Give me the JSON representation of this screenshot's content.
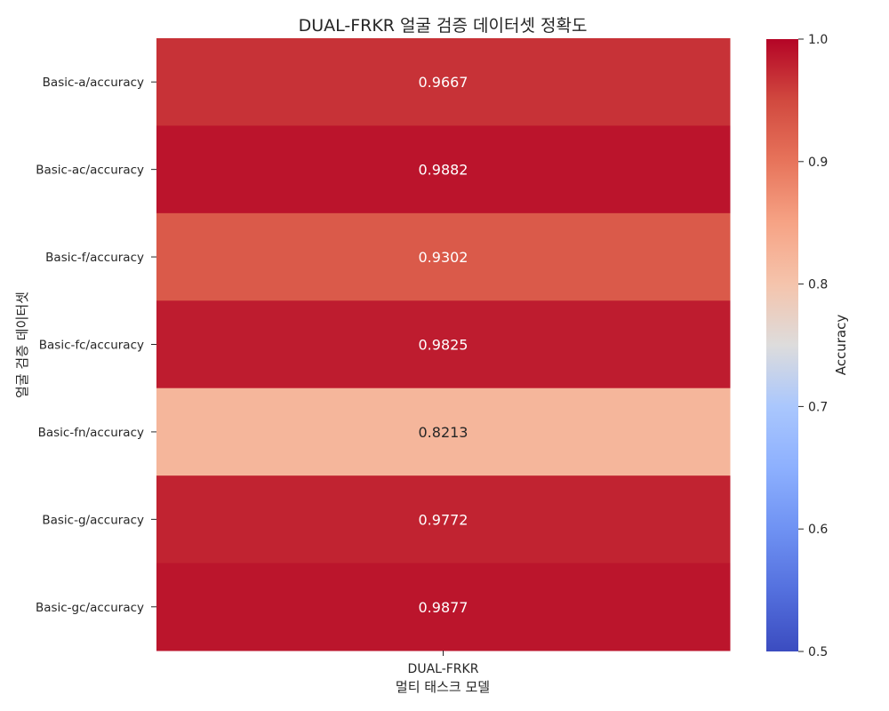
{
  "chart_data": {
    "type": "heatmap",
    "title": "DUAL-FRKR 얼굴 검증 데이터셋 정확도",
    "xlabel": "멀티 태스크 모델",
    "ylabel": "얼굴 검증 데이터셋",
    "columns": [
      "DUAL-FRKR"
    ],
    "rows": [
      "Basic-a/accuracy",
      "Basic-ac/accuracy",
      "Basic-f/accuracy",
      "Basic-fc/accuracy",
      "Basic-fn/accuracy",
      "Basic-g/accuracy",
      "Basic-gc/accuracy"
    ],
    "values": [
      [
        0.9667
      ],
      [
        0.9882
      ],
      [
        0.9302
      ],
      [
        0.9825
      ],
      [
        0.8213
      ],
      [
        0.9772
      ],
      [
        0.9877
      ]
    ],
    "value_labels": [
      "0.9667",
      "0.9882",
      "0.9302",
      "0.9825",
      "0.8213",
      "0.9772",
      "0.9877"
    ],
    "colorbar": {
      "label": "Accuracy",
      "min": 0.5,
      "max": 1.0,
      "ticks": [
        "0.5",
        "0.6",
        "0.7",
        "0.8",
        "0.9",
        "1.0"
      ],
      "colormap": "coolwarm"
    }
  }
}
